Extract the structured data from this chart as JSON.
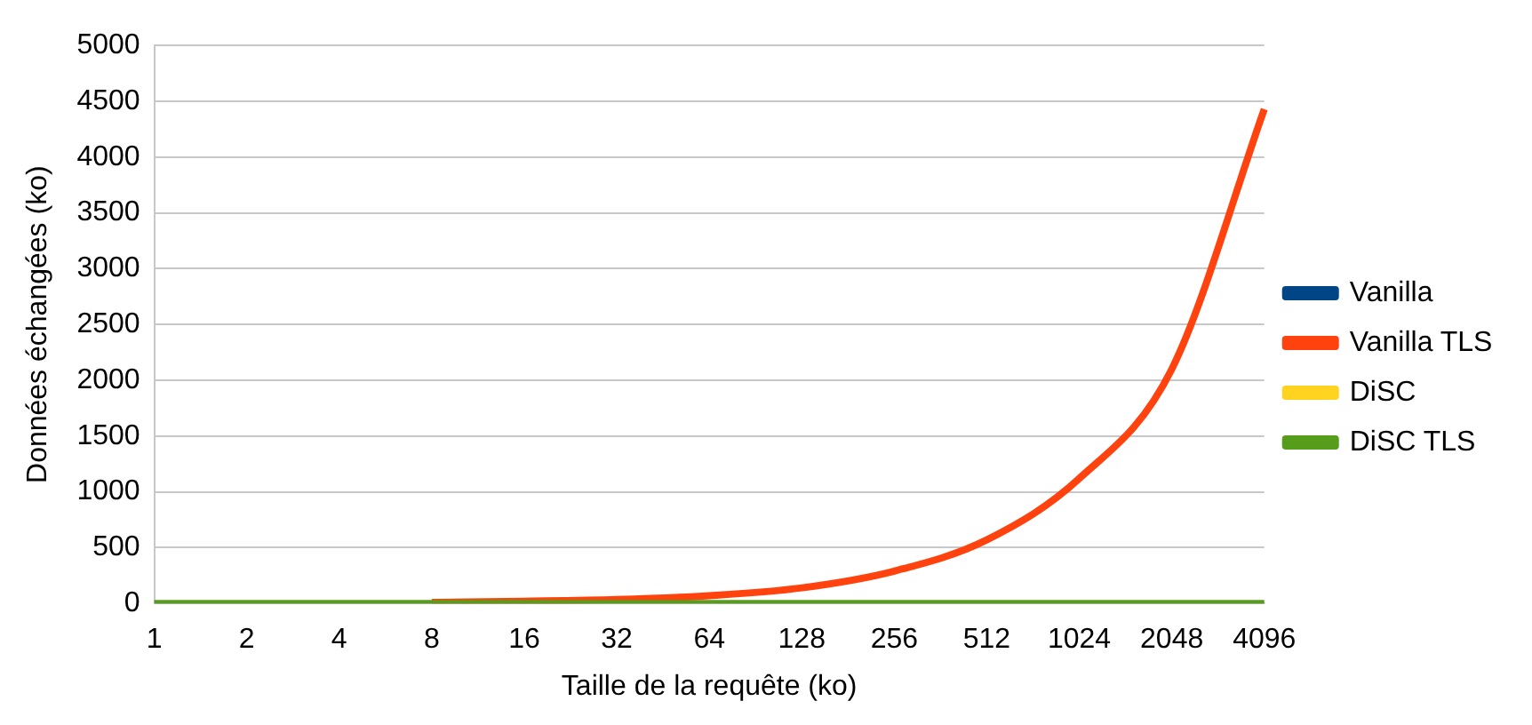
{
  "chart_data": {
    "type": "line",
    "xlabel": "Taille de la requête (ko)",
    "ylabel": "Données échangées (ko)",
    "categories": [
      "1",
      "2",
      "4",
      "8",
      "16",
      "32",
      "64",
      "128",
      "256",
      "512",
      "1024",
      "2048",
      "4096"
    ],
    "series": [
      {
        "name": "Vanilla",
        "color": "#004586",
        "values": [
          null,
          null,
          null,
          null,
          null,
          null,
          null,
          null,
          null,
          null,
          null,
          null,
          null
        ]
      },
      {
        "name": "Vanilla TLS",
        "color": "#ff420e",
        "values": [
          null,
          null,
          null,
          10,
          20,
          35,
          70,
          140,
          290,
          570,
          1120,
          2100,
          4430
        ]
      },
      {
        "name": "DiSC",
        "color": "#ffd320",
        "values": [
          null,
          null,
          null,
          null,
          null,
          null,
          null,
          null,
          null,
          null,
          null,
          null,
          null
        ]
      },
      {
        "name": "DiSC TLS",
        "color": "#579d1c",
        "values": [
          0,
          0,
          0,
          0,
          0,
          0,
          0,
          0,
          0,
          0,
          0,
          0,
          0
        ]
      }
    ],
    "ylim": [
      0,
      5000
    ],
    "yticks": [
      0,
      500,
      1000,
      1500,
      2000,
      2500,
      3000,
      3500,
      4000,
      4500,
      5000
    ],
    "grid": "y",
    "legend": "right",
    "marker": "none",
    "line_style": "solid"
  }
}
